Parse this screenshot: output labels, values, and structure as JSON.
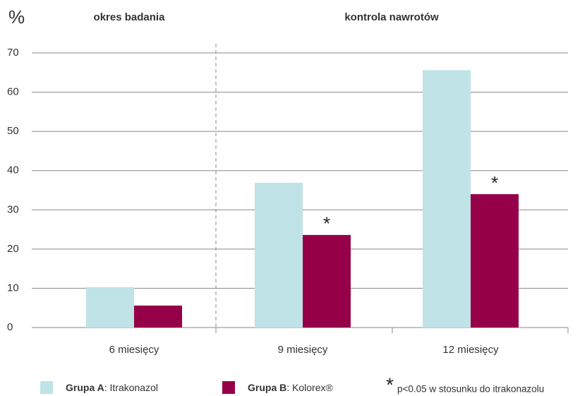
{
  "chart_data": {
    "type": "bar",
    "y_label": "%",
    "sections": [
      "okres badania",
      "kontrola nawrotów"
    ],
    "categories": [
      "6 miesięcy",
      "9 miesięcy",
      "12 miesięcy"
    ],
    "series": [
      {
        "name": "Grupa A",
        "detail": ": Itrakonazol",
        "color": "#bfe3e6",
        "values": [
          10.3,
          36.9,
          65.6
        ]
      },
      {
        "name": "Grupa B",
        "detail": ": Kolorex®",
        "color": "#960048",
        "values": [
          5.6,
          23.6,
          34
        ],
        "markers": [
          null,
          "*",
          "*"
        ]
      }
    ],
    "note": {
      "symbol": "*",
      "text": "p<0.05 w stosunku do itrakonazolu"
    },
    "ylim": [
      0,
      70
    ],
    "yticks": [
      0,
      10,
      20,
      30,
      40,
      50,
      60,
      70
    ],
    "grid": true
  }
}
